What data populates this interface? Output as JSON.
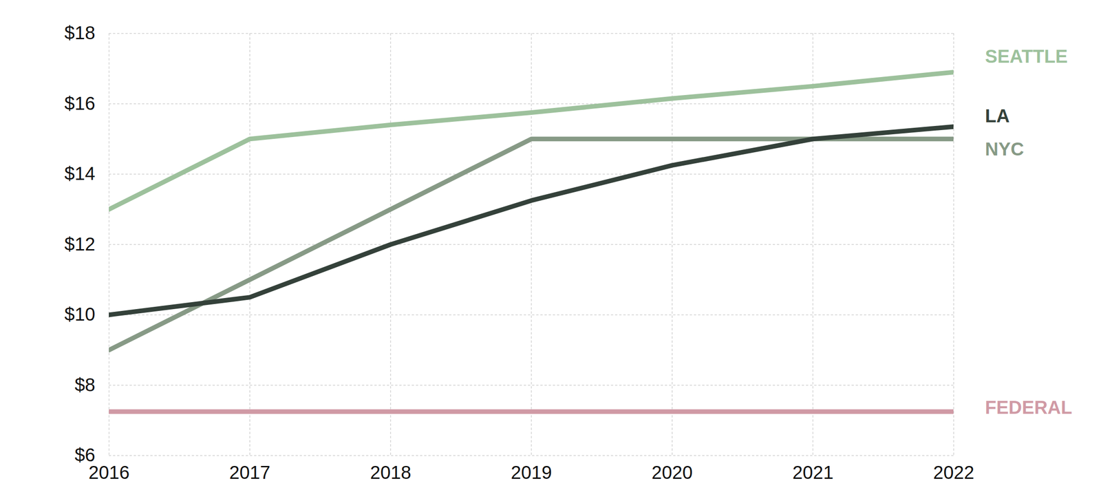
{
  "chart_data": {
    "type": "line",
    "x": [
      2016,
      2017,
      2018,
      2019,
      2020,
      2021,
      2022
    ],
    "series": [
      {
        "name": "SEATTLE",
        "color": "#9dc19c",
        "values": [
          13,
          15,
          15.4,
          15.75,
          16.15,
          16.5,
          16.9
        ]
      },
      {
        "name": "LA",
        "color": "#34413a",
        "values": [
          10,
          10.5,
          12,
          13.25,
          14.25,
          15,
          15.35
        ]
      },
      {
        "name": "NYC",
        "color": "#879a86",
        "values": [
          9,
          11,
          13,
          15,
          15,
          15,
          15
        ]
      },
      {
        "name": "FEDERAL",
        "color": "#d09aa5",
        "values": [
          7.25,
          7.25,
          7.25,
          7.25,
          7.25,
          7.25,
          7.25
        ]
      }
    ],
    "xlim": [
      2016,
      2022
    ],
    "xticks": [
      2016,
      2017,
      2018,
      2019,
      2020,
      2021,
      2022
    ],
    "ylim": [
      6,
      18
    ],
    "yticks": [
      {
        "value": 6,
        "label": "$6"
      },
      {
        "value": 8,
        "label": "$8"
      },
      {
        "value": 10,
        "label": "$10"
      },
      {
        "value": 12,
        "label": "$12"
      },
      {
        "value": 14,
        "label": "$14"
      },
      {
        "value": 16,
        "label": "$16"
      },
      {
        "value": 18,
        "label": "$18"
      }
    ],
    "grid": true
  }
}
